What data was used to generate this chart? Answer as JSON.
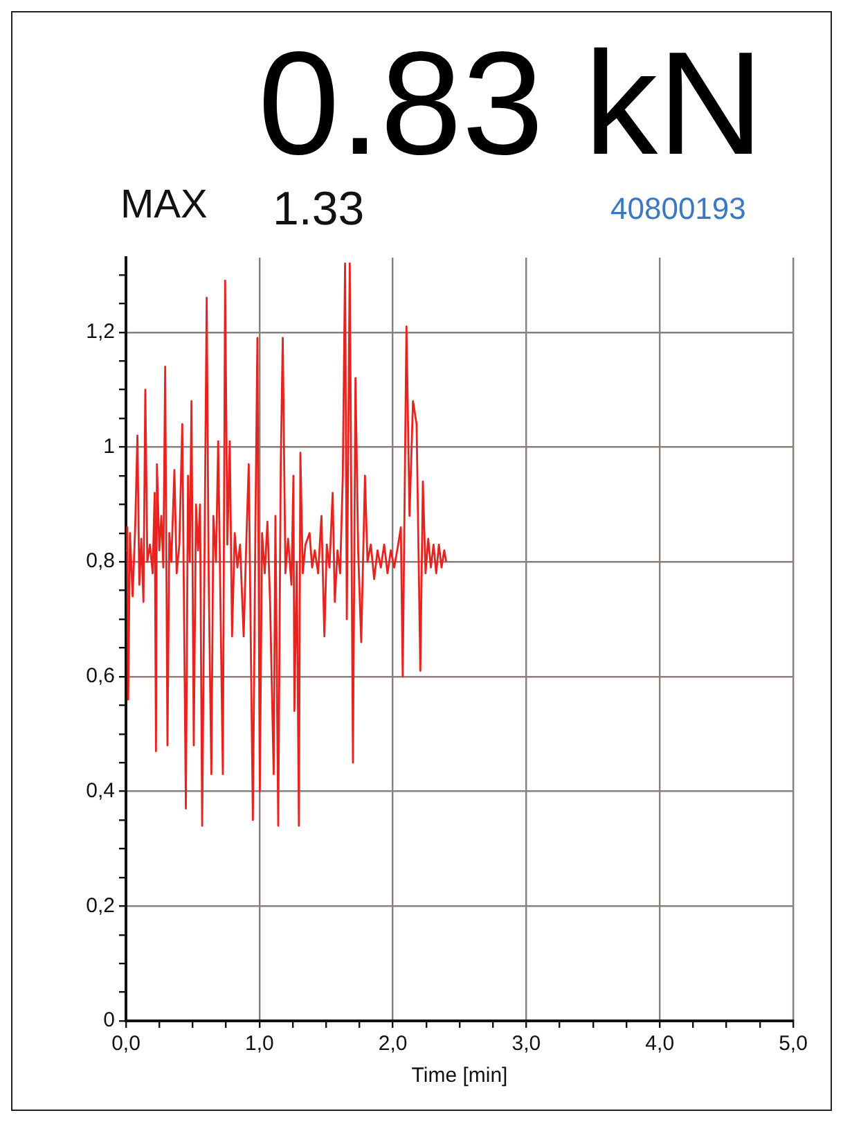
{
  "chart_data": {
    "type": "line",
    "title": "0.83 kN",
    "xlabel": "Time [min]",
    "annotations": [
      "MAX",
      "1.33",
      "40800193"
    ],
    "xlim": [
      0,
      5
    ],
    "ylim": [
      0,
      1.33
    ],
    "xticks": [
      {
        "value": 0,
        "label": "0,0"
      },
      {
        "value": 0.25,
        "label": null
      },
      {
        "value": 0.5,
        "label": null
      },
      {
        "value": 0.75,
        "label": null
      },
      {
        "value": 1,
        "label": "1,0"
      },
      {
        "value": 1.25,
        "label": null
      },
      {
        "value": 1.5,
        "label": null
      },
      {
        "value": 1.75,
        "label": null
      },
      {
        "value": 2,
        "label": "2,0"
      },
      {
        "value": 2.25,
        "label": null
      },
      {
        "value": 2.5,
        "label": null
      },
      {
        "value": 2.75,
        "label": null
      },
      {
        "value": 3,
        "label": "3,0"
      },
      {
        "value": 3.25,
        "label": null
      },
      {
        "value": 3.5,
        "label": null
      },
      {
        "value": 3.75,
        "label": null
      },
      {
        "value": 4,
        "label": "4,0"
      },
      {
        "value": 4.25,
        "label": null
      },
      {
        "value": 4.5,
        "label": null
      },
      {
        "value": 4.75,
        "label": null
      },
      {
        "value": 5,
        "label": "5,0"
      }
    ],
    "yticks": [
      0,
      {
        "value": 0.05,
        "label": null
      },
      {
        "value": 0.1,
        "label": null
      },
      {
        "value": 0.15,
        "label": null
      },
      {
        "value": 0.2,
        "label": "0,2"
      },
      {
        "value": 0.25,
        "label": null
      },
      {
        "value": 0.3,
        "label": null
      },
      {
        "value": 0.35,
        "label": null
      },
      {
        "value": 0.4,
        "label": "0,4"
      },
      {
        "value": 0.45,
        "label": null
      },
      {
        "value": 0.5,
        "label": null
      },
      {
        "value": 0.55,
        "label": null
      },
      {
        "value": 0.6,
        "label": "0,6"
      },
      {
        "value": 0.65,
        "label": null
      },
      {
        "value": 0.7,
        "label": null
      },
      {
        "value": 0.75,
        "label": null
      },
      {
        "value": 0.8,
        "label": "0,8"
      },
      {
        "value": 0.85,
        "label": null
      },
      {
        "value": 0.9,
        "label": null
      },
      {
        "value": 0.95,
        "label": null
      },
      1,
      {
        "value": 1.05,
        "label": null
      },
      {
        "value": 1.1,
        "label": null
      },
      {
        "value": 1.15,
        "label": null
      },
      {
        "value": 1.2,
        "label": "1,2"
      },
      {
        "value": 1.25,
        "label": null
      },
      {
        "value": 1.3,
        "label": null
      }
    ],
    "grid": true,
    "legend": false,
    "marker": "none",
    "line_style": "solid",
    "series": [
      {
        "color": "#e8231f",
        "x": [
          0,
          0.01,
          0.017,
          0.03,
          0.05,
          0.069,
          0.086,
          0.1,
          0.115,
          0.131,
          0.145,
          0.16,
          0.18,
          0.2,
          0.215,
          0.225,
          0.232,
          0.25,
          0.265,
          0.28,
          0.294,
          0.311,
          0.325,
          0.34,
          0.363,
          0.38,
          0.4,
          0.422,
          0.449,
          0.465,
          0.478,
          0.491,
          0.508,
          0.525,
          0.54,
          0.555,
          0.571,
          0.59,
          0.605,
          0.62,
          0.64,
          0.655,
          0.675,
          0.691,
          0.705,
          0.726,
          0.743,
          0.76,
          0.778,
          0.795,
          0.815,
          0.835,
          0.855,
          0.882,
          0.9,
          0.92,
          0.951,
          0.97,
          0.985,
          1.003,
          1.02,
          1.04,
          1.06,
          1.08,
          1.107,
          1.12,
          1.141,
          1.16,
          1.175,
          1.195,
          1.215,
          1.24,
          1.255,
          1.262,
          1.28,
          1.296,
          1.307,
          1.325,
          1.345,
          1.376,
          1.395,
          1.415,
          1.44,
          1.465,
          1.487,
          1.505,
          1.525,
          1.549,
          1.565,
          1.585,
          1.605,
          1.625,
          1.642,
          1.655,
          1.677,
          1.701,
          1.72,
          1.74,
          1.763,
          1.791,
          1.81,
          1.835,
          1.86,
          1.885,
          1.91,
          1.935,
          1.96,
          1.985,
          2.01,
          2.04,
          2.06,
          2.074,
          2.102,
          2.125,
          2.151,
          2.178,
          2.206,
          2.225,
          2.245,
          2.265,
          2.285,
          2.305,
          2.325,
          2.345,
          2.365,
          2.385,
          2.4
        ],
        "values": [
          0.82,
          0.86,
          0.56,
          0.85,
          0.74,
          0.86,
          1.02,
          0.76,
          0.84,
          0.73,
          1.1,
          0.8,
          0.83,
          0.78,
          0.92,
          0.47,
          0.97,
          0.82,
          0.88,
          0.79,
          1.14,
          0.48,
          0.85,
          0.8,
          0.96,
          0.78,
          0.83,
          1.04,
          0.37,
          0.95,
          0.8,
          1.08,
          0.48,
          0.9,
          0.82,
          0.9,
          0.34,
          0.85,
          1.26,
          0.77,
          0.43,
          0.88,
          0.8,
          1.01,
          0.78,
          0.43,
          1.29,
          0.83,
          1.01,
          0.67,
          0.85,
          0.79,
          0.83,
          0.67,
          0.82,
          0.97,
          0.35,
          0.86,
          1.19,
          0.4,
          0.85,
          0.78,
          0.87,
          0.73,
          0.43,
          0.88,
          0.34,
          0.97,
          1.19,
          0.78,
          0.84,
          0.76,
          0.95,
          0.54,
          0.8,
          0.34,
          0.99,
          0.78,
          0.83,
          0.85,
          0.79,
          0.82,
          0.78,
          0.88,
          0.67,
          0.83,
          0.79,
          0.92,
          0.73,
          0.82,
          0.78,
          0.95,
          1.32,
          0.7,
          1.32,
          0.45,
          1.12,
          0.82,
          0.66,
          0.95,
          0.8,
          0.83,
          0.77,
          0.82,
          0.79,
          0.83,
          0.78,
          0.82,
          0.79,
          0.83,
          0.86,
          0.6,
          1.21,
          0.88,
          1.08,
          1.04,
          0.61,
          0.94,
          0.78,
          0.84,
          0.79,
          0.83,
          0.78,
          0.83,
          0.79,
          0.82,
          0.8
        ]
      }
    ]
  }
}
